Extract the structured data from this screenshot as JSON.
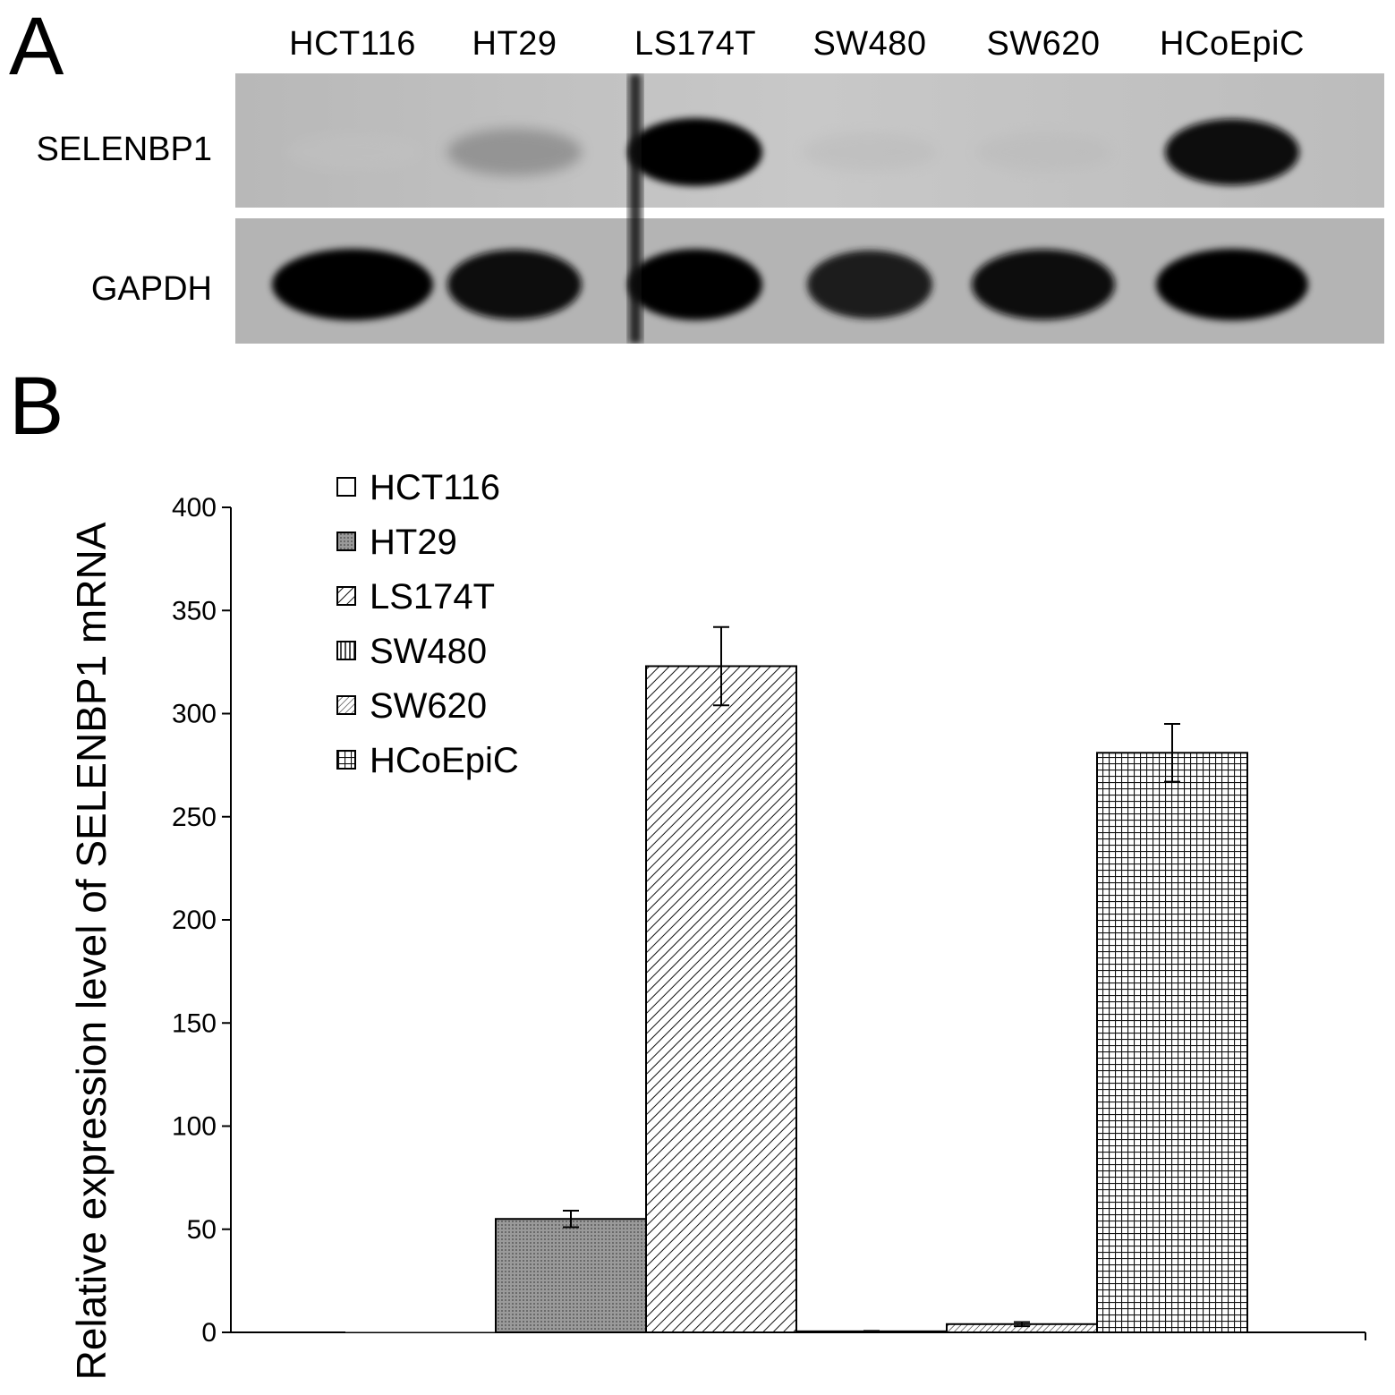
{
  "panel_a": {
    "letter": "A",
    "lanes": [
      "HCT116",
      "HT29",
      "LS174T",
      "SW480",
      "SW620",
      "HCoEpiC"
    ],
    "rows": [
      {
        "label": "SELENBP1",
        "band_intensity": [
          0.02,
          0.35,
          1.0,
          0.08,
          0.08,
          0.95
        ]
      },
      {
        "label": "GAPDH",
        "band_intensity": [
          1.0,
          0.92,
          0.98,
          0.85,
          0.95,
          1.0
        ]
      }
    ]
  },
  "panel_b": {
    "letter": "B"
  },
  "chart_data": {
    "type": "bar",
    "ylabel": "Relative expression level of SELENBP1 mRNA",
    "xlabel": "",
    "ylim": [
      0,
      400
    ],
    "yticks": [
      0,
      50,
      100,
      150,
      200,
      250,
      300,
      350,
      400
    ],
    "legend_position": "top-left",
    "categories": [
      "HCT116",
      "HT29",
      "LS174T",
      "SW480",
      "SW620",
      "HCoEpiC"
    ],
    "values": [
      0,
      55,
      323,
      0.5,
      4,
      281
    ],
    "errors": [
      0,
      4,
      19,
      0.2,
      1,
      14
    ],
    "patterns": [
      "none",
      "dots",
      "diagonal",
      "vertical",
      "diagonal-fine",
      "grid"
    ]
  }
}
